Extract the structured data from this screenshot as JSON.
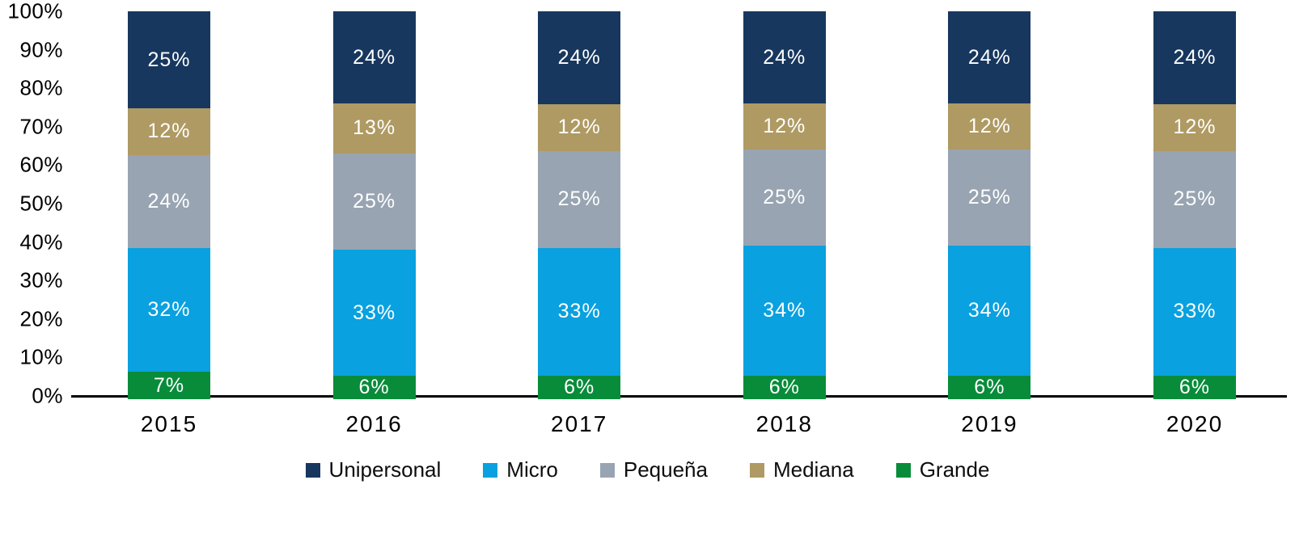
{
  "chart_data": {
    "type": "bar",
    "variant": "stacked-100-percent",
    "title": "",
    "xlabel": "",
    "ylabel": "",
    "ylim": [
      0,
      100
    ],
    "grid": false,
    "legend_position": "bottom",
    "label_suffix": "%",
    "categories": [
      "2015",
      "2016",
      "2017",
      "2018",
      "2019",
      "2020"
    ],
    "y_ticks": [
      "100%",
      "90%",
      "80%",
      "70%",
      "60%",
      "50%",
      "40%",
      "30%",
      "20%",
      "10%",
      "0%"
    ],
    "series": [
      {
        "name": "Unipersonal",
        "color": "#17375E",
        "values": [
          25,
          24,
          24,
          24,
          24,
          24
        ]
      },
      {
        "name": "Micro",
        "color": "#09A1E0",
        "values": [
          32,
          33,
          33,
          34,
          34,
          33
        ]
      },
      {
        "name": "Pequeña",
        "color": "#98A4B2",
        "values": [
          24,
          25,
          25,
          25,
          25,
          25
        ]
      },
      {
        "name": "Mediana",
        "color": "#AF9A63",
        "values": [
          12,
          13,
          12,
          12,
          12,
          12
        ]
      },
      {
        "name": "Grande",
        "color": "#088C3A",
        "values": [
          7,
          6,
          6,
          6,
          6,
          6
        ]
      }
    ],
    "stack_order_bottom_to_top": [
      "Grande",
      "Micro",
      "Pequeña",
      "Mediana",
      "Unipersonal"
    ],
    "legend_order": [
      "Unipersonal",
      "Micro",
      "Pequeña",
      "Mediana",
      "Grande"
    ],
    "colors": {
      "axis_line": "#000000",
      "tick_text": "#000000",
      "bar_label_text": "#ffffff",
      "background": "#ffffff"
    }
  }
}
